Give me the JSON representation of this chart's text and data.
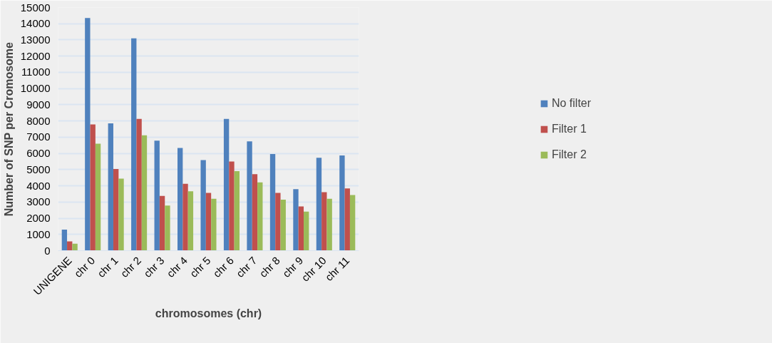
{
  "chart_data": {
    "type": "bar",
    "xlabel": "chromosomes (chr)",
    "ylabel": "Number of SNP per Cromosome",
    "categories": [
      "UNIGENE",
      "chr 0",
      "chr 1",
      "chr 2",
      "chr 3",
      "chr 4",
      "chr 5",
      "chr 6",
      "chr 7",
      "chr 8",
      "chr 9",
      "chr 10",
      "chr 11"
    ],
    "series": [
      {
        "name": "No filter",
        "color": "#4f81bd",
        "values": [
          1300,
          14350,
          7850,
          13100,
          6790,
          6330,
          5590,
          8130,
          6740,
          5960,
          3790,
          5730,
          5870
        ]
      },
      {
        "name": "Filter 1",
        "color": "#c0504d",
        "values": [
          570,
          7790,
          5040,
          8130,
          3380,
          4120,
          3560,
          5500,
          4720,
          3560,
          2730,
          3610,
          3840
        ]
      },
      {
        "name": "Filter 2",
        "color": "#9bbb59",
        "values": [
          430,
          6600,
          4440,
          7110,
          2780,
          3660,
          3200,
          4900,
          4210,
          3150,
          2410,
          3200,
          3430
        ]
      }
    ],
    "ylim": [
      0,
      15000
    ],
    "yticks": [
      0,
      1000,
      2000,
      3000,
      4000,
      5000,
      6000,
      7000,
      8000,
      9000,
      10000,
      11000,
      12000,
      13000,
      14000,
      15000
    ],
    "grid": "y",
    "legend": "right"
  }
}
